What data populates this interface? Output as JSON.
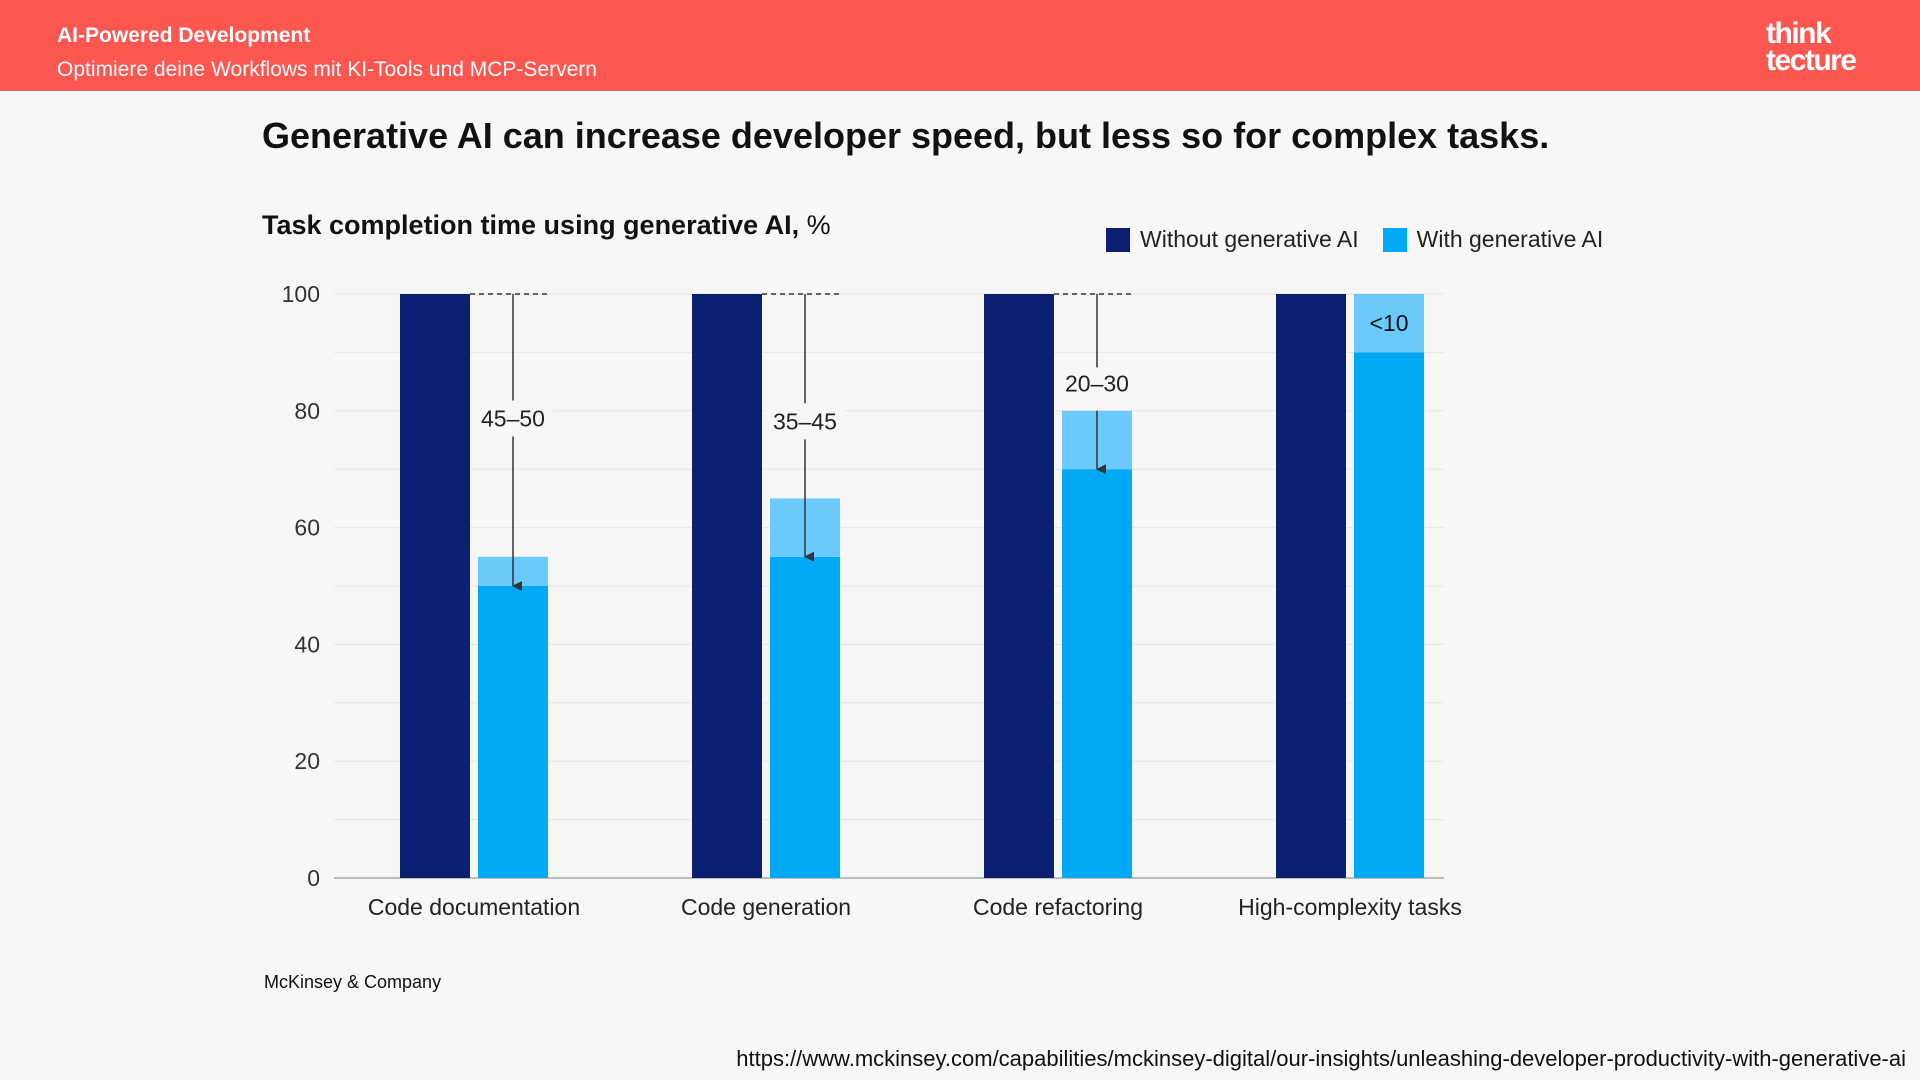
{
  "header": {
    "title": "AI-Powered Development",
    "subtitle": "Optimiere deine Workflows mit KI-Tools und MCP-Servern",
    "logo_text": "think tecture"
  },
  "slide": {
    "headline": "Generative AI can increase developer speed, but less so for complex tasks.",
    "source": "McKinsey & Company",
    "url": "https://www.mckinsey.com/capabilities/mckinsey-digital/our-insights/unleashing-developer-productivity-with-generative-ai"
  },
  "chart_data": {
    "type": "bar",
    "title": "Task completion time using generative AI,",
    "unit": "%",
    "categories": [
      "Code documentation",
      "Code generation",
      "Code refactoring",
      "High-complexity tasks"
    ],
    "series": [
      {
        "name": "Without generative AI",
        "values": [
          100,
          100,
          100,
          100
        ],
        "color": "#0b1f73"
      },
      {
        "name": "With generative AI",
        "range_low": [
          50,
          55,
          70,
          90
        ],
        "range_high": [
          55,
          65,
          80,
          100
        ],
        "color": "#00a9f4",
        "range_color": "#6cc9fb"
      }
    ],
    "reduction_labels": [
      "45–50",
      "35–45",
      "20–30",
      "<10"
    ],
    "yticks": [
      0,
      20,
      40,
      60,
      80,
      100
    ],
    "ylim": [
      0,
      100
    ],
    "legend_position": "top-right",
    "grid": true
  }
}
